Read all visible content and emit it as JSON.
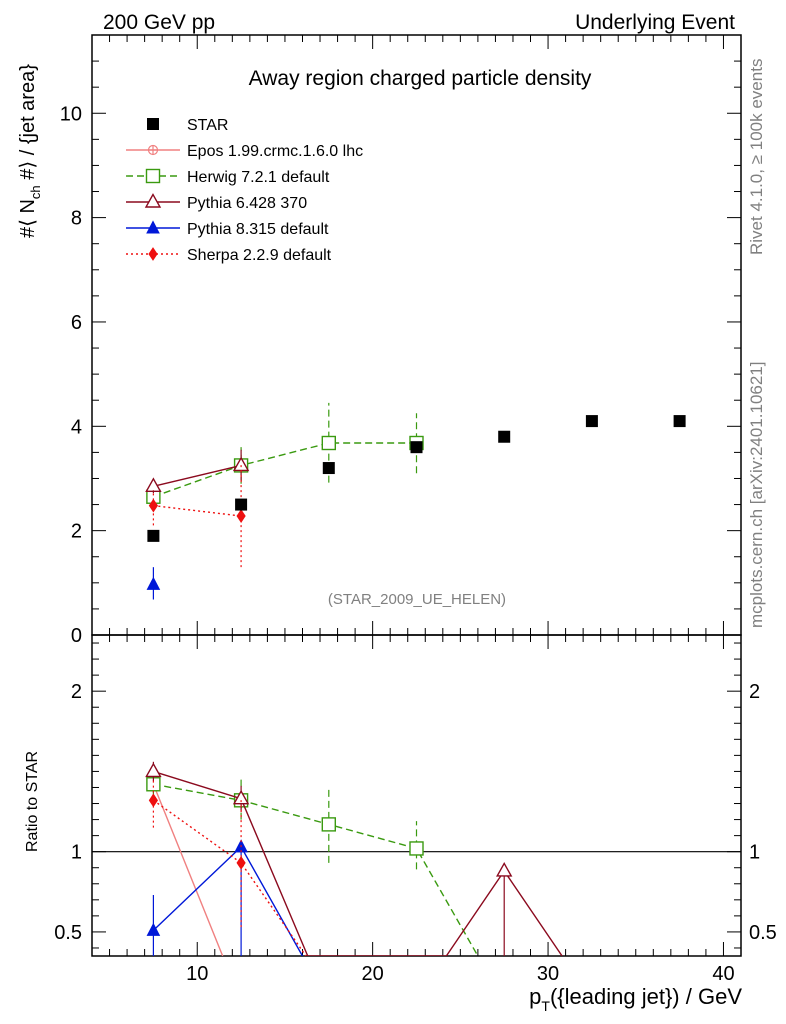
{
  "chart_data": {
    "type": "scatter",
    "header_left": "200 GeV pp",
    "header_right": "Underlying Event",
    "title": "Away region charged particle density",
    "ylabel": "#⟨ N",
    "ylabel_sub": "ch",
    "ylabel_rest": " #⟩ / {jet area}",
    "ratio_ylabel": "Ratio to STAR",
    "xlabel": "p",
    "xlabel_sub": "T",
    "xlabel_rest": "({leading jet}) / GeV",
    "watermark": "(STAR_2009_UE_HELEN)",
    "side_text_top": "Rivet 4.1.0, ≥ 100k events",
    "side_text_bottom": "mcplots.cern.ch [arXiv:2401.10621]",
    "xlim": [
      4,
      41
    ],
    "ylim": [
      0,
      11.5
    ],
    "ratio_ylim": [
      0.35,
      2.35
    ],
    "x_ticks": [
      "10",
      "20",
      "30",
      "40"
    ],
    "y_ticks": [
      "0",
      "2",
      "4",
      "6",
      "8",
      "10"
    ],
    "ratio_ticks": [
      "0.5",
      "1",
      "2"
    ],
    "data": {
      "name": "STAR",
      "color": "#000000",
      "x": [
        7.5,
        12.5,
        17.5,
        22.5,
        27.5,
        32.5,
        37.5
      ],
      "y": [
        1.9,
        2.5,
        3.2,
        3.6,
        3.8,
        4.1,
        4.1
      ]
    },
    "series": [
      {
        "name": "Epos 1.99.crmc.1.6.0 lhc",
        "color": "#f08080",
        "marker": "cross",
        "dash": "",
        "main": [],
        "ratio": [
          {
            "x": 7.5,
            "y": 1.42
          },
          {
            "x": 11.45,
            "y": 0.35
          }
        ]
      },
      {
        "name": "Herwig 7.2.1 default",
        "color": "#3a9a10",
        "marker": "open-square",
        "dash": "7,4",
        "main": [
          {
            "x": 7.5,
            "y": 2.65,
            "lo": 2.5,
            "hi": 2.85
          },
          {
            "x": 12.5,
            "y": 3.25,
            "lo": 2.9,
            "hi": 3.6
          },
          {
            "x": 17.5,
            "y": 3.68,
            "lo": 2.92,
            "hi": 4.45
          },
          {
            "x": 22.5,
            "y": 3.68,
            "lo": 3.1,
            "hi": 4.25
          }
        ],
        "ratio": [
          {
            "x": 7.5,
            "y": 1.42,
            "lo": 1.35,
            "hi": 1.5
          },
          {
            "x": 12.5,
            "y": 1.32,
            "lo": 1.2,
            "hi": 1.45
          },
          {
            "x": 17.5,
            "y": 1.17,
            "lo": 0.93,
            "hi": 1.41
          },
          {
            "x": 22.5,
            "y": 1.02,
            "lo": 0.89,
            "hi": 1.19
          },
          {
            "x": 26.0,
            "y": 0.35
          }
        ]
      },
      {
        "name": "Pythia 6.428 370",
        "color": "#8b0a1e",
        "marker": "open-triangle",
        "dash": "",
        "main": [
          {
            "x": 7.5,
            "y": 2.85,
            "lo": 2.72,
            "hi": 2.98
          },
          {
            "x": 12.5,
            "y": 3.25,
            "lo": 2.95,
            "hi": 3.55
          }
        ],
        "ratio": [
          {
            "x": 7.5,
            "y": 1.5,
            "lo": 1.44,
            "hi": 1.56
          },
          {
            "x": 12.5,
            "y": 1.33,
            "lo": 1.25,
            "hi": 1.41
          },
          {
            "x": 16.3,
            "y": 0.35
          },
          {
            "x": 24.2,
            "y": 0.35
          },
          {
            "x": 27.5,
            "y": 0.88,
            "lo": 0.35,
            "hi": 0.88
          },
          {
            "x": 30.8,
            "y": 0.35
          }
        ]
      },
      {
        "name": "Pythia 8.315 default",
        "color": "#0018d8",
        "marker": "filled-triangle",
        "dash": "",
        "main": [
          {
            "x": 7.5,
            "y": 0.97,
            "lo": 0.68,
            "hi": 1.3
          }
        ],
        "ratio": [
          {
            "x": 7.5,
            "y": 0.51,
            "lo": 0.35,
            "hi": 0.73
          },
          {
            "x": 12.5,
            "y": 1.03,
            "lo": 0.35,
            "hi": 1.03
          },
          {
            "x": 16.0,
            "y": 0.35
          }
        ]
      },
      {
        "name": "Sherpa 2.2.9 default",
        "color": "#ee1010",
        "marker": "filled-diamond",
        "dash": "2,3",
        "main": [
          {
            "x": 7.5,
            "y": 2.48,
            "lo": 2.1,
            "hi": 2.78
          },
          {
            "x": 12.5,
            "y": 2.28,
            "lo": 1.3,
            "hi": 3.3
          }
        ],
        "ratio": [
          {
            "x": 7.5,
            "y": 1.32,
            "lo": 1.15,
            "hi": 1.45
          },
          {
            "x": 12.5,
            "y": 0.93,
            "lo": 0.53,
            "hi": 1.33
          },
          {
            "x": 16.2,
            "y": 0.35
          }
        ]
      }
    ]
  }
}
